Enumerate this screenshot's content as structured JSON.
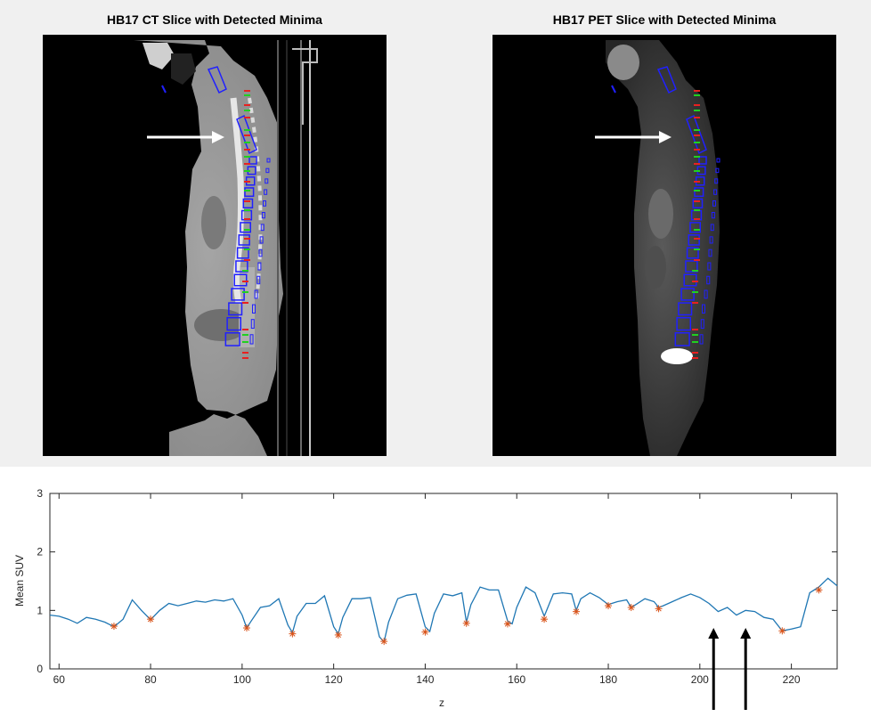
{
  "images": [
    {
      "title": "HB17 CT Slice with Detected Minima",
      "modality": "CT"
    },
    {
      "title": "HB17 PET Slice with Detected Minima",
      "modality": "PET"
    }
  ],
  "chart_data": {
    "type": "line",
    "title": "",
    "xlabel": "z",
    "ylabel": "Mean SUV",
    "xlim": [
      58,
      230
    ],
    "ylim": [
      0,
      3
    ],
    "xticks": [
      60,
      80,
      100,
      120,
      140,
      160,
      180,
      200,
      220
    ],
    "yticks": [
      0,
      1,
      2,
      3
    ],
    "grid": false,
    "series": [
      {
        "type": "line",
        "color": "#1f77b4",
        "x": [
          58,
          60,
          62,
          64,
          66,
          68,
          70,
          72,
          74,
          76,
          78,
          80,
          82,
          84,
          86,
          88,
          90,
          92,
          94,
          96,
          98,
          100,
          101,
          102,
          104,
          106,
          108,
          110,
          111,
          112,
          114,
          116,
          118,
          120,
          121,
          122,
          124,
          126,
          128,
          130,
          131,
          132,
          134,
          136,
          138,
          140,
          141,
          142,
          144,
          146,
          148,
          149,
          150,
          152,
          154,
          156,
          158,
          159,
          160,
          162,
          164,
          166,
          168,
          170,
          172,
          173,
          174,
          176,
          178,
          180,
          182,
          184,
          185,
          186,
          188,
          190,
          191,
          192,
          194,
          196,
          198,
          200,
          202,
          204,
          206,
          208,
          210,
          212,
          214,
          216,
          218,
          220,
          222,
          224,
          226,
          228,
          230
        ],
        "y": [
          0.92,
          0.9,
          0.85,
          0.78,
          0.88,
          0.85,
          0.8,
          0.72,
          0.85,
          1.18,
          1.0,
          0.84,
          1.0,
          1.12,
          1.08,
          1.12,
          1.16,
          1.14,
          1.18,
          1.16,
          1.2,
          0.92,
          0.7,
          0.82,
          1.05,
          1.08,
          1.2,
          0.75,
          0.62,
          0.9,
          1.12,
          1.12,
          1.25,
          0.72,
          0.6,
          0.88,
          1.2,
          1.2,
          1.22,
          0.55,
          0.46,
          0.8,
          1.2,
          1.26,
          1.28,
          0.72,
          0.64,
          0.95,
          1.28,
          1.25,
          1.3,
          0.8,
          1.1,
          1.4,
          1.35,
          1.35,
          0.82,
          0.77,
          1.05,
          1.4,
          1.3,
          0.9,
          1.28,
          1.3,
          1.28,
          1.0,
          1.2,
          1.3,
          1.22,
          1.1,
          1.15,
          1.18,
          1.05,
          1.1,
          1.2,
          1.15,
          1.05,
          1.08,
          1.15,
          1.22,
          1.28,
          1.22,
          1.12,
          0.98,
          1.05,
          0.92,
          1.0,
          0.98,
          0.88,
          0.85,
          0.65,
          0.68,
          0.72,
          1.3,
          1.4,
          1.55,
          1.42
        ]
      },
      {
        "type": "scatter",
        "marker": "*",
        "color": "#d95319",
        "x": [
          72,
          80,
          101,
          111,
          121,
          131,
          140,
          149,
          158,
          166,
          173,
          180,
          185,
          191,
          218,
          226
        ],
        "y": [
          0.73,
          0.85,
          0.7,
          0.6,
          0.58,
          0.47,
          0.63,
          0.78,
          0.77,
          0.85,
          0.98,
          1.08,
          1.05,
          1.03,
          0.65,
          1.35
        ]
      }
    ],
    "annotations": [
      {
        "type": "arrow",
        "direction": "up",
        "x": 203,
        "y_from": -0.7,
        "y_to": 0.7
      },
      {
        "type": "arrow",
        "direction": "up",
        "x": 210,
        "y_from": -0.7,
        "y_to": 0.7
      }
    ]
  }
}
